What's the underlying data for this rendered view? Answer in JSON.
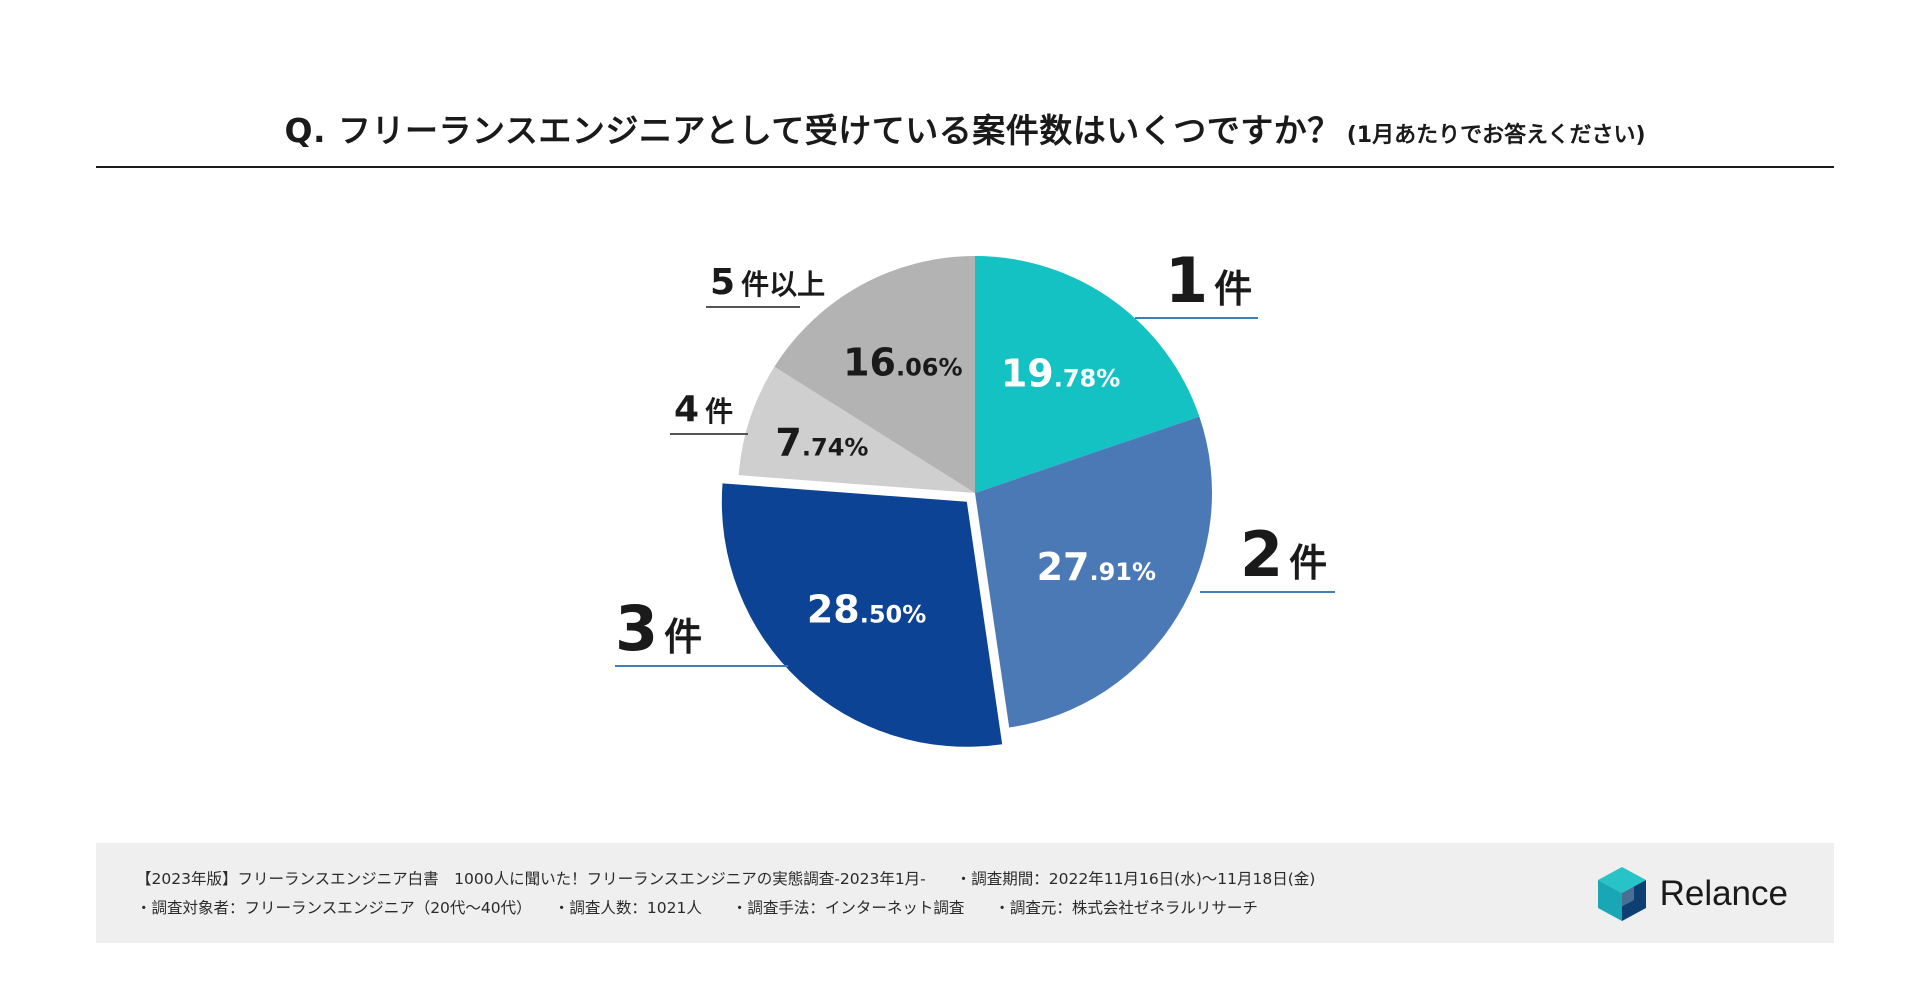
{
  "title": {
    "main": "Q. フリーランスエンジニアとして受けている案件数はいくつですか？",
    "sub": "(1月あたりでお答えください)"
  },
  "chart_data": {
    "type": "pie",
    "categories": [
      "1件",
      "2件",
      "3件",
      "4件",
      "5件以上"
    ],
    "values": [
      19.78,
      27.91,
      28.5,
      7.74,
      16.06
    ],
    "value_labels": [
      "19.78%",
      "27.91%",
      "28.50%",
      "7.74%",
      "16.06%"
    ],
    "colors": [
      "#14c1c3",
      "#4a79b6",
      "#0c4394",
      "#cfcfcf",
      "#b3b3b3"
    ],
    "value_label_colors": [
      "#ffffff",
      "#ffffff",
      "#ffffff",
      "#1a1a1a",
      "#1a1a1a"
    ],
    "exploded": "3件",
    "start": "12 o'clock, clockwise"
  },
  "footer": {
    "line1": {
      "source": "【2023年版】フリーランスエンジニア白書　1000人に聞いた！フリーランスエンジニアの実態調査-2023年1月-",
      "period": "・調査期間：2022年11月16日(水)〜11月18日(金)"
    },
    "line2": {
      "target": "・調査対象者：フリーランスエンジニア（20代〜40代）",
      "count": "・調査人数：1021人",
      "method": "・調査手法：インターネット調査",
      "org": "・調査元：株式会社ゼネラルリサーチ"
    },
    "logo": "Relance"
  }
}
